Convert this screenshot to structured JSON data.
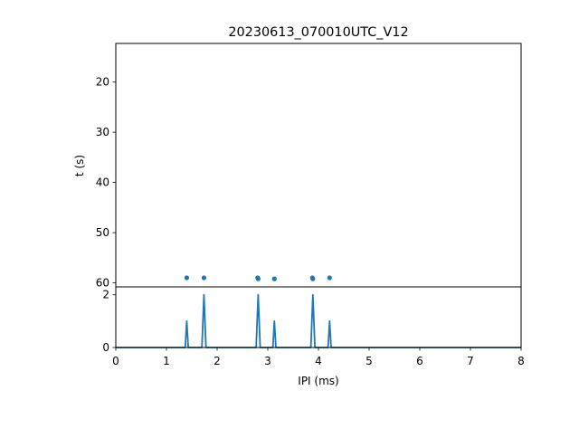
{
  "chart_data": [
    {
      "type": "scatter",
      "title": "20230613_070010UTC_V12",
      "xlabel": "",
      "ylabel": "t (s)",
      "xlim": [
        0,
        8
      ],
      "ylim": [
        60.8,
        12.3
      ],
      "y_inverted": true,
      "yticks": [
        20,
        30,
        40,
        50,
        60
      ],
      "x_ticks_visible": false,
      "grid": false,
      "color": "#1f77b4",
      "points": [
        {
          "x": 1.4,
          "y": 59.0
        },
        {
          "x": 1.74,
          "y": 59.0
        },
        {
          "x": 2.8,
          "y": 59.0
        },
        {
          "x": 2.81,
          "y": 59.2
        },
        {
          "x": 3.13,
          "y": 59.2
        },
        {
          "x": 3.88,
          "y": 59.0
        },
        {
          "x": 3.89,
          "y": 59.2
        },
        {
          "x": 4.22,
          "y": 59.0
        }
      ]
    },
    {
      "type": "line",
      "title": "",
      "xlabel": "IPI (ms)",
      "ylabel": "",
      "xlim": [
        0,
        8
      ],
      "ylim": [
        0,
        2.3
      ],
      "xticks": [
        0,
        1,
        2,
        3,
        4,
        5,
        6,
        7,
        8
      ],
      "yticks": [
        0,
        2
      ],
      "grid": false,
      "color": "#1f77b4",
      "x": [
        0,
        1.37,
        1.4,
        1.43,
        1.7,
        1.74,
        1.78,
        2.77,
        2.81,
        2.85,
        3.1,
        3.13,
        3.16,
        3.85,
        3.89,
        3.93,
        4.19,
        4.22,
        4.25,
        8
      ],
      "y": [
        0,
        0,
        1,
        0,
        0,
        2,
        0,
        0,
        2,
        0,
        0,
        1,
        0,
        0,
        2,
        0,
        0,
        1,
        0,
        0
      ]
    }
  ]
}
